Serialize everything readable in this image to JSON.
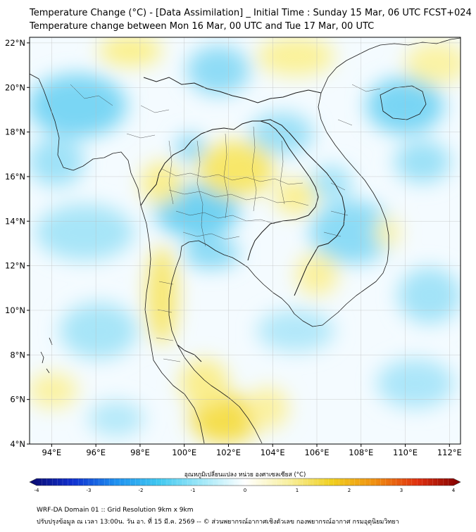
{
  "title": {
    "line1": "Temperature Change (°C) - [Data Assimilation] _ Initial Time : Sunday 15 Mar, 06 UTC FCST+024",
    "line2": "Temperature change between Mon 16 Mar, 00 UTC and Tue 17 Mar, 00 UTC"
  },
  "map": {
    "lon_range": [
      93,
      112.5
    ],
    "lat_range": [
      4,
      22.25
    ],
    "lon_ticks": [
      "94°E",
      "96°E",
      "98°E",
      "100°E",
      "102°E",
      "104°E",
      "106°E",
      "108°E",
      "110°E",
      "112°E"
    ],
    "lat_ticks": [
      "4°N",
      "6°N",
      "8°N",
      "10°N",
      "12°N",
      "14°N",
      "16°N",
      "18°N",
      "20°N",
      "22°N"
    ],
    "grid": true
  },
  "colorbar": {
    "title": "อุณหภูมิเปลี่ยนแปลง หน่วย องศาเซลเซียส (°C)",
    "ticks": [
      "-4",
      "-3",
      "-2",
      "-1",
      "0",
      "1",
      "2",
      "3",
      "4"
    ],
    "range": [
      -4,
      4
    ],
    "colors": [
      "#0a0a6e",
      "#1030d0",
      "#1e90f0",
      "#40c8f0",
      "#a0e8f8",
      "#ffffff",
      "#f8f0a0",
      "#f0d020",
      "#f09010",
      "#e03010",
      "#800000"
    ]
  },
  "footer": {
    "line1": "WRF-DA Domain 01 :: Grid Resolution 9km x 9km",
    "line2": "ปรับปรุงข้อมูล ณ เวลา 13:00น. วัน อา. ที่ 15 มี.ค. 2569 -- © ส่วนพยากรณ์อากาศเชิงตัวเลข กองพยากรณ์อากาศ กรมอุตุนิยมวิทยา"
  }
}
